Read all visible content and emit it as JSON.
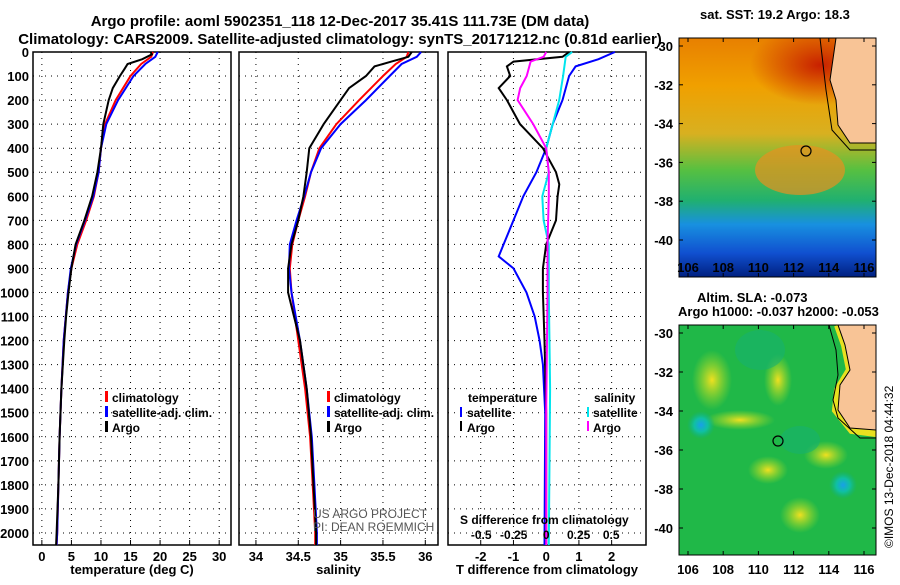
{
  "title_line1": "Argo profile: aoml 5902351_118 12-Dec-2017 35.41S 111.73E (DM data)",
  "title_line2": "Climatology: CARS2009. Satellite-adjusted climatology: synTS_20171212.nc (0.81d earlier)",
  "colors": {
    "climatology": "#ff0000",
    "satellite": "#0000ff",
    "argo": "#000000",
    "sal_satellite": "#00e5ee",
    "sal_argo": "#ff00ff"
  },
  "chart_data": [
    {
      "type": "line",
      "name": "temperature",
      "xlabel": "temperature (deg C)",
      "xlim": [
        -1.5,
        32
      ],
      "ylim": [
        2050,
        0
      ],
      "xticks": [
        0,
        5,
        10,
        15,
        20,
        25,
        30
      ],
      "yticks": [
        0,
        100,
        200,
        300,
        400,
        500,
        600,
        700,
        800,
        900,
        1000,
        1100,
        1200,
        1300,
        1400,
        1500,
        1600,
        1700,
        1800,
        1900,
        2000
      ],
      "legend": [
        "climatology",
        "satellite-adj. clim.",
        "Argo"
      ],
      "series": [
        {
          "name": "climatology",
          "depth": [
            0,
            20,
            50,
            100,
            200,
            300,
            400,
            500,
            600,
            700,
            800,
            900,
            1000,
            1200,
            1400,
            1600,
            1800,
            2000,
            2050
          ],
          "values": [
            18.8,
            18.5,
            16.8,
            15,
            12.5,
            10.7,
            10,
            9.6,
            8.8,
            7.5,
            6,
            5,
            4.4,
            3.7,
            3.3,
            3,
            2.8,
            2.6,
            2.5
          ]
        },
        {
          "name": "satellite-adj. clim.",
          "depth": [
            0,
            20,
            50,
            100,
            200,
            300,
            400,
            500,
            600,
            700,
            800,
            900,
            1000,
            1200,
            1400,
            1600,
            1800,
            2000,
            2050
          ],
          "values": [
            19.6,
            19.2,
            17.5,
            15.5,
            12.9,
            10.9,
            10,
            9.6,
            8.7,
            7.3,
            5.8,
            4.9,
            4.4,
            3.7,
            3.3,
            3,
            2.8,
            2.6,
            2.5
          ]
        },
        {
          "name": "Argo",
          "depth": [
            0,
            10,
            30,
            50,
            70,
            100,
            150,
            200,
            300,
            400,
            500,
            600,
            700,
            800,
            900,
            1000,
            1100,
            1200,
            1400,
            1600,
            1800,
            2000,
            2050
          ],
          "values": [
            18.4,
            18.6,
            17,
            14.5,
            14,
            13.2,
            12,
            11.3,
            10.4,
            10,
            9.4,
            8.5,
            7.2,
            5.7,
            5,
            4.5,
            4.1,
            3.8,
            3.3,
            3,
            2.8,
            2.5,
            2.4
          ]
        }
      ]
    },
    {
      "type": "line",
      "name": "salinity",
      "xlabel": "salinity",
      "xlim": [
        33.8,
        36.15
      ],
      "ylim": [
        2050,
        0
      ],
      "xticks": [
        34,
        34.5,
        35,
        35.5,
        36
      ],
      "legend": [
        "climatology",
        "satellite-adj. clim.",
        "Argo"
      ],
      "annotation": [
        "US ARGO PROJECT",
        "PI: DEAN ROEMMICH"
      ],
      "series": [
        {
          "name": "climatology",
          "depth": [
            0,
            20,
            50,
            100,
            200,
            300,
            400,
            500,
            600,
            700,
            800,
            900,
            1000,
            1200,
            1400,
            1600,
            1800,
            2000,
            2050
          ],
          "values": [
            35.8,
            35.78,
            35.65,
            35.5,
            35.22,
            34.95,
            34.75,
            34.65,
            34.58,
            34.5,
            34.43,
            34.4,
            34.42,
            34.5,
            34.58,
            34.64,
            34.67,
            34.7,
            34.7
          ]
        },
        {
          "name": "satellite-adj. clim.",
          "depth": [
            0,
            20,
            50,
            100,
            200,
            300,
            400,
            500,
            600,
            700,
            800,
            900,
            1000,
            1200,
            1400,
            1600,
            1800,
            2000,
            2050
          ],
          "values": [
            35.95,
            35.9,
            35.72,
            35.58,
            35.3,
            35.0,
            34.77,
            34.65,
            34.57,
            34.48,
            34.4,
            34.39,
            34.42,
            34.52,
            34.6,
            34.66,
            34.69,
            34.72,
            34.72
          ]
        },
        {
          "name": "Argo",
          "depth": [
            0,
            20,
            40,
            60,
            100,
            150,
            200,
            300,
            400,
            500,
            600,
            700,
            800,
            900,
            1000,
            1100,
            1200,
            1400,
            1600,
            1800,
            2000,
            2050
          ],
          "values": [
            35.84,
            35.8,
            35.6,
            35.4,
            35.3,
            35.1,
            35.0,
            34.8,
            34.63,
            34.6,
            34.56,
            34.5,
            34.42,
            34.38,
            34.38,
            34.45,
            34.52,
            34.6,
            34.65,
            34.68,
            34.71,
            34.71
          ]
        }
      ]
    },
    {
      "type": "line",
      "name": "difference",
      "xlabel": "T difference from climatology",
      "s_label": "S difference from climatology",
      "xlim": [
        -3,
        3.05
      ],
      "ylim": [
        2050,
        0
      ],
      "xticks": [
        -2,
        -1,
        0,
        1,
        2
      ],
      "s_xticks": [
        "-0.5",
        "-0.25",
        "0",
        "0.25",
        "0.5"
      ],
      "legend_temperature": {
        "title": "temperature",
        "items": [
          "satellite",
          "Argo"
        ]
      },
      "legend_salinity": {
        "title": "salinity",
        "items": [
          "satellite",
          "Argo"
        ]
      },
      "series": [
        {
          "name": "T satellite",
          "unit": "degC",
          "depth": [
            0,
            30,
            60,
            100,
            200,
            300,
            400,
            500,
            600,
            700,
            800,
            850,
            900,
            1000,
            1100,
            1200,
            1300,
            1500,
            2050
          ],
          "values": [
            2.1,
            1.6,
            0.9,
            0.7,
            0.5,
            0.2,
            0.0,
            -0.3,
            -0.7,
            -1.0,
            -1.3,
            -1.45,
            -1.0,
            -0.6,
            -0.35,
            -0.2,
            -0.1,
            -0.03,
            -0.05
          ]
        },
        {
          "name": "T Argo",
          "unit": "degC",
          "depth": [
            0,
            20,
            40,
            60,
            100,
            150,
            200,
            300,
            400,
            500,
            550,
            600,
            700,
            800,
            900,
            1000,
            1200,
            1500,
            2050
          ],
          "values": [
            0.7,
            0.5,
            -1.0,
            -1.2,
            -1.1,
            -1.45,
            -1.2,
            -0.8,
            -0.1,
            0.3,
            0.4,
            0.35,
            0.3,
            0.0,
            -0.1,
            -0.1,
            -0.05,
            0.0,
            0.0
          ]
        },
        {
          "name": "S satellite",
          "unit": "psu",
          "depth": [
            0,
            20,
            100,
            200,
            300,
            400,
            500,
            600,
            700,
            800,
            1000,
            1400,
            2050
          ],
          "values": [
            0.2,
            0.15,
            0.13,
            0.1,
            0.05,
            0.0,
            0.02,
            -0.03,
            -0.02,
            0.02,
            0.02,
            0.03,
            0.02
          ]
        },
        {
          "name": "S Argo",
          "unit": "psu",
          "depth": [
            0,
            20,
            40,
            100,
            150,
            200,
            300,
            400,
            500,
            600,
            800,
            1000,
            1500,
            2050
          ],
          "values": [
            0.0,
            -0.02,
            -0.12,
            -0.15,
            -0.2,
            -0.22,
            -0.1,
            0.0,
            0.02,
            0.02,
            0.01,
            0.01,
            0.0,
            0.0
          ]
        }
      ]
    }
  ],
  "maps": {
    "sst_title": "sat. SST: 19.2 Argo: 18.3",
    "sla_title1": "Altim. SLA: -0.073",
    "sla_title2": "Argo h1000: -0.037 h2000: -0.053",
    "lat_ticks": [
      "-30",
      "-32",
      "-34",
      "-36",
      "-38",
      "-40"
    ],
    "lon_ticks": [
      "106",
      "108",
      "110",
      "112",
      "114",
      "116"
    ],
    "profile_lat": -35.41,
    "profile_lon": 111.73,
    "stamp": "©IMOS 13-Dec-2018 04:44:32"
  }
}
